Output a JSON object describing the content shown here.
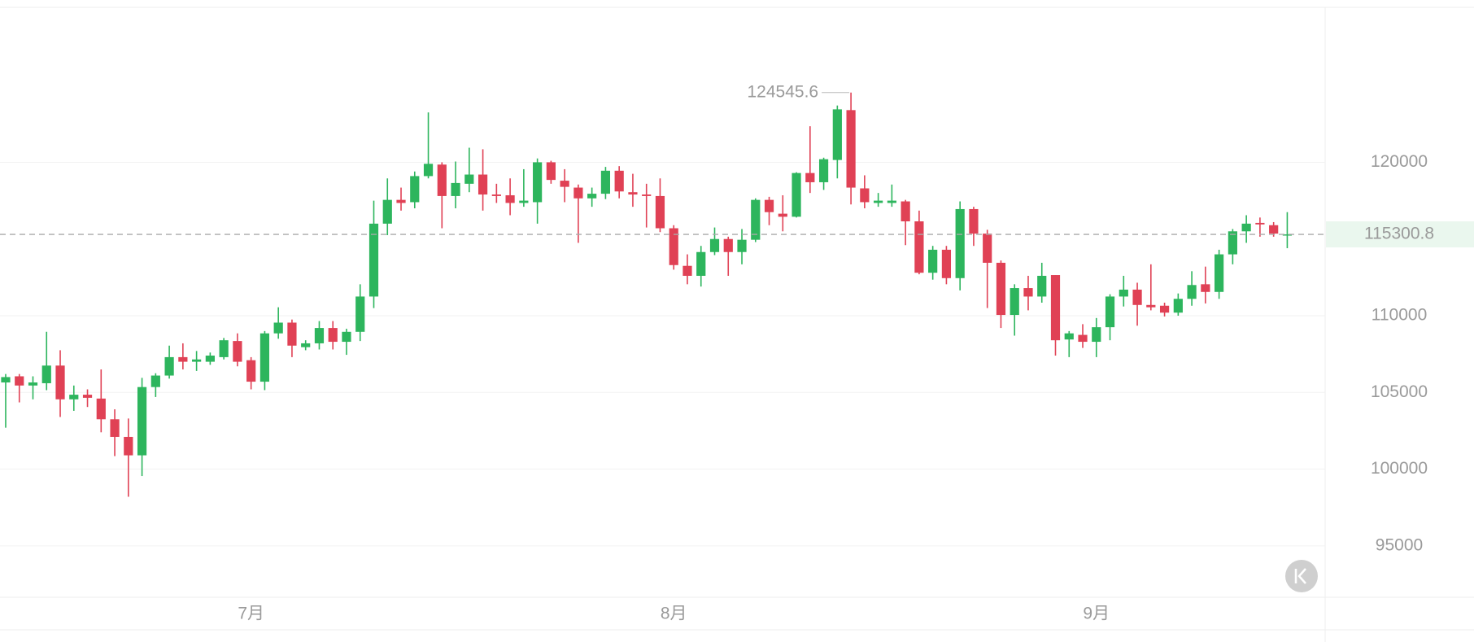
{
  "chart_data": {
    "type": "candlestick",
    "categories": [
      null,
      null,
      null,
      null,
      null,
      null,
      null,
      null,
      null,
      null,
      null,
      null,
      null,
      null,
      null,
      null,
      null,
      null,
      "7月",
      null,
      null,
      null,
      null,
      null,
      null,
      null,
      null,
      null,
      null,
      null,
      null,
      null,
      null,
      null,
      null,
      null,
      null,
      null,
      null,
      null,
      null,
      null,
      null,
      null,
      null,
      null,
      null,
      null,
      null,
      "8月",
      null,
      null,
      null,
      null,
      null,
      null,
      null,
      null,
      null,
      null,
      null,
      null,
      null,
      null,
      null,
      null,
      null,
      null,
      null,
      null,
      null,
      null,
      null,
      null,
      null,
      null,
      null,
      null,
      null,
      null,
      "9月",
      null,
      null,
      null,
      null,
      null,
      null,
      null,
      null,
      null,
      null,
      null,
      null,
      null,
      null
    ],
    "open": [
      105650,
      106050,
      105450,
      105600,
      106750,
      104550,
      104850,
      104600,
      103250,
      102100,
      100900,
      105350,
      106100,
      107300,
      107000,
      107000,
      107300,
      108350,
      107100,
      105700,
      108850,
      109550,
      107950,
      108200,
      109200,
      108300,
      108950,
      111250,
      116000,
      117550,
      117400,
      119100,
      119850,
      117800,
      118600,
      119200,
      117900,
      117850,
      117350,
      117400,
      120000,
      118800,
      118350,
      117650,
      117950,
      119450,
      118050,
      117900,
      117800,
      115700,
      113250,
      112600,
      114150,
      115000,
      114150,
      114950,
      117550,
      116650,
      116450,
      119300,
      118700,
      120150,
      123400,
      118300,
      117350,
      117350,
      117450,
      116150,
      112800,
      114300,
      112450,
      116950,
      115350,
      113450,
      110050,
      111800,
      111250,
      112650,
      108450,
      108750,
      108300,
      109250,
      111250,
      111700,
      110700,
      110650,
      110200,
      111100,
      112050,
      111550,
      114000,
      115500,
      116050,
      115900,
      115250
    ],
    "high": [
      106200,
      106200,
      106050,
      108950,
      107750,
      105450,
      105200,
      106500,
      103900,
      103300,
      105950,
      106250,
      108050,
      108200,
      107700,
      107600,
      108550,
      108850,
      107300,
      109000,
      110550,
      109750,
      108400,
      109650,
      109650,
      109150,
      112050,
      117500,
      118950,
      118350,
      119400,
      123250,
      120000,
      120050,
      120950,
      120850,
      118600,
      118950,
      119550,
      120250,
      120100,
      119550,
      118550,
      118350,
      119700,
      119750,
      119250,
      118600,
      118950,
      115900,
      114000,
      114550,
      115750,
      115150,
      115650,
      117650,
      117750,
      117850,
      119350,
      122350,
      120300,
      123700,
      124545.6,
      119150,
      118000,
      118550,
      117550,
      116850,
      114550,
      114550,
      117450,
      117100,
      115600,
      113600,
      112050,
      112600,
      113450,
      112650,
      109000,
      109450,
      109850,
      111400,
      112600,
      112150,
      113350,
      110850,
      111450,
      112900,
      113200,
      114300,
      115650,
      116550,
      116400,
      116100,
      116750
    ],
    "low": [
      102700,
      104350,
      104550,
      105150,
      103400,
      103800,
      104050,
      102400,
      100850,
      98200,
      99550,
      104700,
      105900,
      106500,
      106400,
      106800,
      107150,
      106700,
      105200,
      105150,
      108500,
      107300,
      107750,
      107800,
      107800,
      107450,
      108350,
      110500,
      115250,
      116850,
      117000,
      118950,
      115700,
      117000,
      118050,
      116850,
      117350,
      116550,
      117100,
      116000,
      118600,
      117400,
      114750,
      117100,
      117600,
      117650,
      117100,
      115750,
      115450,
      113000,
      112050,
      111900,
      113950,
      112600,
      113350,
      114800,
      115900,
      115500,
      116400,
      118000,
      118200,
      118950,
      117250,
      117000,
      117100,
      117100,
      114600,
      112700,
      112350,
      112050,
      111650,
      114550,
      110500,
      109200,
      108700,
      110350,
      110850,
      107400,
      107300,
      107900,
      107300,
      108400,
      110600,
      109350,
      110350,
      109950,
      110000,
      110650,
      110800,
      111100,
      113350,
      114750,
      115150,
      115150,
      114400
    ],
    "close": [
      106000,
      105450,
      105650,
      106750,
      104550,
      104850,
      104650,
      103250,
      102100,
      100900,
      105350,
      106100,
      107300,
      107000,
      107150,
      107400,
      108400,
      107000,
      105700,
      108850,
      109550,
      108050,
      108200,
      109200,
      108300,
      108950,
      111250,
      116000,
      117550,
      117350,
      119100,
      119900,
      117800,
      118650,
      119200,
      117900,
      117800,
      117350,
      117500,
      120000,
      118850,
      118400,
      117650,
      117950,
      119450,
      118100,
      117900,
      117800,
      115700,
      113300,
      112600,
      114150,
      115000,
      114150,
      114950,
      117550,
      116750,
      116450,
      119300,
      118700,
      120200,
      123450,
      118350,
      117400,
      117500,
      117500,
      116150,
      112800,
      114300,
      112450,
      116950,
      115350,
      113450,
      110050,
      111800,
      111250,
      112600,
      108400,
      108850,
      108300,
      109250,
      111250,
      111700,
      110700,
      110550,
      110200,
      111100,
      112000,
      111550,
      114000,
      115500,
      116000,
      115950,
      115350,
      115300.8
    ],
    "up_color": "#2db55d",
    "down_color": "#e04155",
    "ylim": [
      91650,
      130100
    ],
    "yticks": [
      95000,
      100000,
      105000,
      110000,
      120000
    ],
    "grid": true
  }
}
